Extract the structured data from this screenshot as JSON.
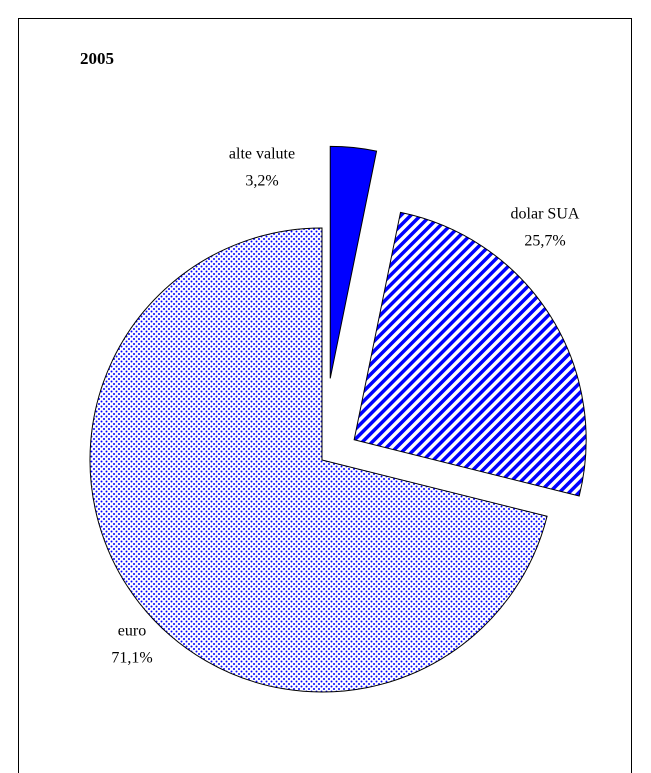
{
  "chart_data": {
    "type": "pie",
    "title": "2005",
    "categories": [
      "alte valute",
      "dolar SUA",
      "euro"
    ],
    "values": [
      3.2,
      25.7,
      71.1
    ],
    "value_labels": [
      "3,2%",
      "25,7%",
      "71,1%"
    ],
    "colors": [
      "#0000ff",
      "#0000ff",
      "#0000ff"
    ]
  }
}
